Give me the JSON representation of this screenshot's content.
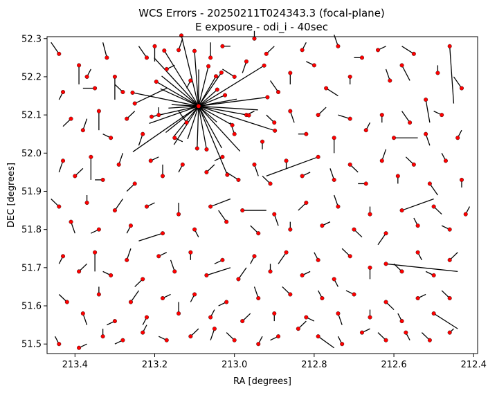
{
  "chart_data": {
    "type": "scatter",
    "title": "WCS Errors - 20250211T024343.3 (focal-plane)",
    "subtitle": "E exposure - odi_i - 40sec",
    "xlabel": "RA [degrees]",
    "ylabel": "DEC [degrees]",
    "xlim": [
      213.47,
      212.39
    ],
    "ylim": [
      51.475,
      52.305
    ],
    "x_ticks": [
      213.4,
      213.2,
      213.0,
      212.8,
      212.6,
      212.4
    ],
    "x_tick_labels": [
      "213.4",
      "213.2",
      "213.0",
      "212.8",
      "212.6",
      "212.4"
    ],
    "y_ticks": [
      51.5,
      51.6,
      51.7,
      51.8,
      51.9,
      52.0,
      52.1,
      52.2,
      52.3
    ],
    "y_tick_labels": [
      "51.5",
      "51.6",
      "51.7",
      "51.8",
      "51.9",
      "52.0",
      "52.1",
      "52.2",
      "52.3"
    ],
    "grid": false,
    "colors": {
      "marker": "#ff0000",
      "marker_edge": "#000000",
      "error_vector": "#000000"
    },
    "convergence_point": [
      213.09,
      52.123
    ],
    "points": [
      [
        213.44,
        52.26,
        0.02,
        0.03
      ],
      [
        213.43,
        52.16,
        0.01,
        -0.02
      ],
      [
        213.39,
        52.23,
        0.0,
        -0.05
      ],
      [
        213.37,
        52.2,
        -0.01,
        0.02
      ],
      [
        213.35,
        52.17,
        0.03,
        0.0
      ],
      [
        213.32,
        52.25,
        0.01,
        0.04
      ],
      [
        213.3,
        52.2,
        0.0,
        -0.06
      ],
      [
        213.28,
        52.16,
        0.02,
        0.02
      ],
      [
        213.25,
        52.13,
        -0.08,
        0.04
      ],
      [
        213.22,
        52.25,
        0.02,
        0.03
      ],
      [
        213.2,
        52.28,
        0.0,
        -0.04
      ],
      [
        213.17,
        52.22,
        -0.02,
        0.01
      ],
      [
        213.14,
        52.27,
        -0.01,
        0.03
      ],
      [
        213.11,
        52.19,
        0.01,
        -0.02
      ],
      [
        213.06,
        52.25,
        0.0,
        0.04
      ],
      [
        213.03,
        52.28,
        -0.02,
        0.0
      ],
      [
        213.0,
        52.2,
        0.03,
        0.02
      ],
      [
        212.97,
        52.24,
        0.01,
        -0.03
      ],
      [
        212.95,
        52.3,
        0.0,
        0.02
      ],
      [
        212.92,
        52.26,
        -0.02,
        0.02
      ],
      [
        212.89,
        52.16,
        0.02,
        0.03
      ],
      [
        212.86,
        52.21,
        0.0,
        -0.03
      ],
      [
        212.83,
        52.27,
        -0.01,
        0.02
      ],
      [
        212.8,
        52.23,
        0.02,
        0.01
      ],
      [
        212.77,
        52.17,
        -0.03,
        -0.02
      ],
      [
        212.74,
        52.28,
        0.01,
        0.03
      ],
      [
        212.71,
        52.2,
        0.0,
        -0.02
      ],
      [
        212.68,
        52.25,
        0.02,
        0.0
      ],
      [
        212.64,
        52.27,
        -0.02,
        0.01
      ],
      [
        212.61,
        52.19,
        0.01,
        0.03
      ],
      [
        212.58,
        52.23,
        -0.02,
        -0.04
      ],
      [
        212.55,
        52.26,
        0.03,
        0.02
      ],
      [
        212.52,
        52.14,
        -0.01,
        -0.06
      ],
      [
        212.49,
        52.21,
        0.0,
        0.02
      ],
      [
        212.46,
        52.28,
        -0.01,
        -0.15
      ],
      [
        212.43,
        52.17,
        0.02,
        0.03
      ],
      [
        213.41,
        52.09,
        0.02,
        -0.02
      ],
      [
        213.38,
        52.06,
        -0.01,
        0.03
      ],
      [
        213.34,
        52.11,
        0.0,
        -0.05
      ],
      [
        213.31,
        52.04,
        0.02,
        0.01
      ],
      [
        213.27,
        52.09,
        -0.02,
        0.02
      ],
      [
        213.23,
        52.05,
        0.01,
        -0.03
      ],
      [
        213.19,
        52.1,
        0.0,
        0.02
      ],
      [
        213.15,
        52.04,
        -0.02,
        -0.01
      ],
      [
        213.12,
        52.08,
        0.02,
        0.03
      ],
      [
        213.0,
        52.05,
        0.01,
        0.03
      ],
      [
        212.97,
        52.1,
        -0.02,
        0.01
      ],
      [
        212.93,
        52.03,
        0.0,
        -0.02
      ],
      [
        212.9,
        52.08,
        0.02,
        0.02
      ],
      [
        212.86,
        52.11,
        -0.01,
        -0.03
      ],
      [
        212.82,
        52.05,
        0.02,
        0.0
      ],
      [
        212.79,
        52.1,
        -0.02,
        0.02
      ],
      [
        212.75,
        52.04,
        0.0,
        -0.04
      ],
      [
        212.71,
        52.09,
        0.03,
        0.01
      ],
      [
        212.67,
        52.06,
        -0.01,
        0.02
      ],
      [
        212.63,
        52.1,
        0.0,
        -0.02
      ],
      [
        212.6,
        52.04,
        -0.06,
        0.0
      ],
      [
        212.56,
        52.08,
        0.02,
        0.03
      ],
      [
        212.52,
        52.05,
        -0.01,
        -0.03
      ],
      [
        212.48,
        52.1,
        0.02,
        0.01
      ],
      [
        212.44,
        52.04,
        -0.01,
        0.02
      ],
      [
        213.43,
        51.98,
        0.01,
        -0.03
      ],
      [
        213.4,
        51.94,
        -0.02,
        0.02
      ],
      [
        213.36,
        51.99,
        0.0,
        -0.06
      ],
      [
        213.33,
        51.93,
        0.02,
        0.0
      ],
      [
        213.29,
        51.97,
        -0.01,
        0.03
      ],
      [
        213.25,
        51.92,
        0.02,
        -0.02
      ],
      [
        213.21,
        51.98,
        -0.02,
        0.01
      ],
      [
        213.18,
        51.94,
        0.0,
        0.03
      ],
      [
        213.13,
        51.97,
        0.01,
        -0.02
      ],
      [
        213.07,
        51.95,
        -0.02,
        0.02
      ],
      [
        213.03,
        51.99,
        0.02,
        -0.01
      ],
      [
        212.99,
        51.93,
        0.03,
        0.02
      ],
      [
        212.95,
        51.97,
        -0.01,
        -0.03
      ],
      [
        212.91,
        51.92,
        0.02,
        0.02
      ],
      [
        212.87,
        51.98,
        0.0,
        -0.02
      ],
      [
        212.83,
        51.94,
        -0.02,
        0.01
      ],
      [
        212.79,
        51.99,
        0.13,
        -0.05
      ],
      [
        212.75,
        51.93,
        0.01,
        0.03
      ],
      [
        212.71,
        51.97,
        -0.02,
        -0.02
      ],
      [
        212.67,
        51.92,
        0.02,
        0.0
      ],
      [
        212.63,
        51.98,
        -0.01,
        0.03
      ],
      [
        212.59,
        51.94,
        0.0,
        -0.02
      ],
      [
        212.55,
        51.97,
        0.02,
        0.02
      ],
      [
        212.51,
        51.92,
        -0.02,
        -0.03
      ],
      [
        212.47,
        51.98,
        0.01,
        0.02
      ],
      [
        212.43,
        51.93,
        0.0,
        -0.02
      ],
      [
        213.44,
        51.86,
        0.02,
        0.02
      ],
      [
        213.41,
        51.82,
        -0.01,
        -0.03
      ],
      [
        213.37,
        51.87,
        0.0,
        0.02
      ],
      [
        213.34,
        51.8,
        0.02,
        -0.01
      ],
      [
        213.3,
        51.85,
        -0.02,
        0.03
      ],
      [
        213.26,
        51.81,
        0.01,
        -0.02
      ],
      [
        213.22,
        51.86,
        -0.02,
        0.01
      ],
      [
        213.18,
        51.79,
        0.06,
        -0.02
      ],
      [
        213.14,
        51.84,
        0.0,
        0.03
      ],
      [
        213.1,
        51.8,
        -0.01,
        -0.02
      ],
      [
        213.06,
        51.86,
        -0.05,
        0.02
      ],
      [
        213.02,
        51.82,
        0.02,
        0.03
      ],
      [
        212.98,
        51.85,
        -0.06,
        0.0
      ],
      [
        212.94,
        51.79,
        0.02,
        0.02
      ],
      [
        212.9,
        51.84,
        -0.01,
        -0.03
      ],
      [
        212.86,
        51.8,
        0.0,
        0.02
      ],
      [
        212.82,
        51.87,
        0.02,
        -0.02
      ],
      [
        212.78,
        51.81,
        -0.02,
        0.01
      ],
      [
        212.74,
        51.86,
        0.01,
        0.03
      ],
      [
        212.7,
        51.8,
        -0.02,
        -0.02
      ],
      [
        212.66,
        51.84,
        0.0,
        0.02
      ],
      [
        212.62,
        51.79,
        0.02,
        -0.03
      ],
      [
        212.58,
        51.85,
        -0.08,
        0.03
      ],
      [
        212.54,
        51.81,
        0.01,
        0.02
      ],
      [
        212.5,
        51.86,
        -0.02,
        -0.02
      ],
      [
        212.46,
        51.8,
        0.02,
        0.01
      ],
      [
        212.42,
        51.84,
        -0.01,
        0.02
      ],
      [
        213.43,
        51.73,
        0.01,
        -0.02
      ],
      [
        213.39,
        51.69,
        -0.02,
        0.02
      ],
      [
        213.35,
        51.74,
        0.0,
        -0.05
      ],
      [
        213.31,
        51.68,
        0.02,
        0.01
      ],
      [
        213.27,
        51.72,
        -0.01,
        0.03
      ],
      [
        213.23,
        51.67,
        0.02,
        -0.02
      ],
      [
        213.19,
        51.73,
        -0.02,
        0.01
      ],
      [
        213.15,
        51.69,
        0.01,
        0.03
      ],
      [
        213.11,
        51.74,
        0.0,
        -0.02
      ],
      [
        213.07,
        51.68,
        -0.06,
        0.02
      ],
      [
        213.03,
        51.72,
        0.02,
        -0.01
      ],
      [
        212.99,
        51.67,
        -0.02,
        0.03
      ],
      [
        212.95,
        51.73,
        0.01,
        -0.02
      ],
      [
        212.91,
        51.69,
        0.0,
        0.02
      ],
      [
        212.87,
        51.74,
        0.02,
        -0.03
      ],
      [
        212.83,
        51.68,
        -0.02,
        0.01
      ],
      [
        212.79,
        51.72,
        0.01,
        0.02
      ],
      [
        212.75,
        51.67,
        -0.01,
        -0.02
      ],
      [
        212.71,
        51.73,
        0.02,
        0.02
      ],
      [
        212.66,
        51.7,
        0.0,
        -0.03
      ],
      [
        212.62,
        51.71,
        -0.18,
        -0.02
      ],
      [
        212.58,
        51.69,
        0.02,
        0.02
      ],
      [
        212.54,
        51.74,
        -0.01,
        -0.02
      ],
      [
        212.5,
        51.68,
        0.02,
        0.01
      ],
      [
        212.46,
        51.72,
        -0.02,
        0.02
      ],
      [
        213.42,
        51.61,
        0.02,
        0.02
      ],
      [
        213.38,
        51.58,
        -0.01,
        -0.03
      ],
      [
        213.34,
        51.63,
        0.0,
        0.02
      ],
      [
        213.3,
        51.56,
        0.02,
        -0.01
      ],
      [
        213.26,
        51.61,
        -0.02,
        0.03
      ],
      [
        213.22,
        51.57,
        0.01,
        -0.02
      ],
      [
        213.18,
        51.62,
        -0.02,
        0.01
      ],
      [
        213.14,
        51.58,
        0.0,
        0.03
      ],
      [
        213.1,
        51.63,
        0.01,
        -0.02
      ],
      [
        213.06,
        51.57,
        -0.01,
        0.02
      ],
      [
        213.02,
        51.61,
        0.02,
        -0.01
      ],
      [
        212.98,
        51.56,
        -0.02,
        0.02
      ],
      [
        212.94,
        51.62,
        0.01,
        0.03
      ],
      [
        212.9,
        51.58,
        0.0,
        -0.02
      ],
      [
        212.86,
        51.63,
        0.02,
        0.02
      ],
      [
        212.82,
        51.57,
        -0.02,
        -0.01
      ],
      [
        212.78,
        51.62,
        0.01,
        0.02
      ],
      [
        212.74,
        51.58,
        -0.01,
        -0.03
      ],
      [
        212.7,
        51.63,
        0.02,
        0.01
      ],
      [
        212.66,
        51.57,
        0.0,
        0.02
      ],
      [
        212.62,
        51.61,
        -0.02,
        -0.02
      ],
      [
        212.58,
        51.56,
        0.01,
        0.02
      ],
      [
        212.54,
        51.62,
        -0.02,
        0.01
      ],
      [
        212.5,
        51.58,
        -0.06,
        -0.04
      ],
      [
        212.46,
        51.62,
        0.02,
        0.02
      ],
      [
        213.44,
        51.5,
        0.01,
        0.02
      ],
      [
        213.39,
        51.49,
        -0.02,
        0.01
      ],
      [
        213.33,
        51.52,
        0.0,
        0.02
      ],
      [
        213.28,
        51.51,
        0.02,
        -0.01
      ],
      [
        213.23,
        51.53,
        -0.01,
        0.02
      ],
      [
        213.17,
        51.51,
        0.02,
        0.01
      ],
      [
        213.11,
        51.52,
        -0.02,
        0.02
      ],
      [
        213.05,
        51.54,
        0.01,
        -0.03
      ],
      [
        213.0,
        51.51,
        0.02,
        0.02
      ],
      [
        212.94,
        51.5,
        -0.01,
        0.02
      ],
      [
        212.89,
        51.52,
        0.02,
        -0.01
      ],
      [
        212.84,
        51.54,
        -0.02,
        0.02
      ],
      [
        212.79,
        51.52,
        -0.04,
        -0.03
      ],
      [
        212.73,
        51.5,
        0.01,
        0.02
      ],
      [
        212.68,
        51.53,
        -0.02,
        0.01
      ],
      [
        212.62,
        51.51,
        0.02,
        0.02
      ],
      [
        212.57,
        51.53,
        -0.01,
        -0.02
      ],
      [
        212.51,
        51.51,
        0.02,
        0.02
      ],
      [
        212.46,
        51.53,
        -0.01,
        0.01
      ]
    ]
  }
}
